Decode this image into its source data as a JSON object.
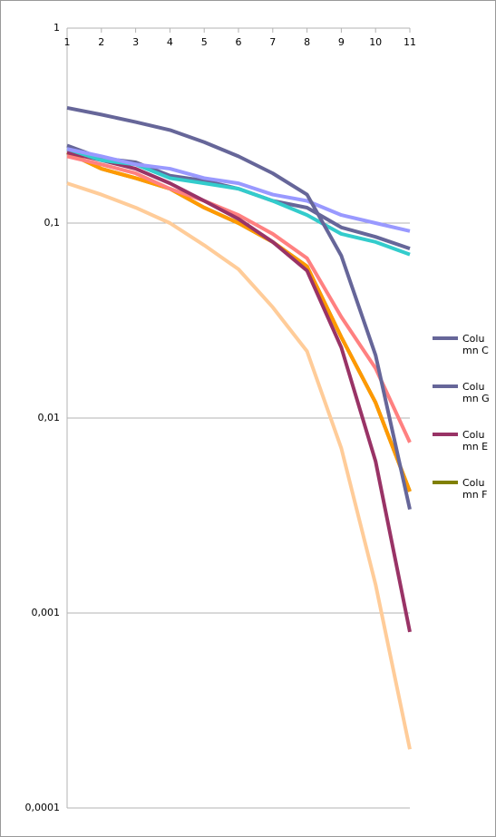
{
  "chart_data": {
    "type": "line",
    "log_scale": true,
    "grid": true,
    "legend": "right",
    "xlim": [
      1,
      11
    ],
    "xticks": [
      1,
      2,
      3,
      4,
      5,
      6,
      7,
      8,
      9,
      10,
      11
    ],
    "ylim": [
      0.0001,
      1
    ],
    "yticks": [
      {
        "value": 0.0001,
        "label": "0,0001"
      },
      {
        "value": 0.001,
        "label": "0,001"
      },
      {
        "value": 0.01,
        "label": "0,01"
      },
      {
        "value": 0.1,
        "label": "0,1"
      },
      1
    ],
    "x": [
      1,
      2,
      3,
      4,
      5,
      6,
      7,
      8,
      9,
      10,
      11
    ],
    "series": [
      {
        "name": "Column F",
        "color": "#808000",
        "values": [
          0.23,
          0.19,
          0.17,
          0.15,
          0.12,
          0.1,
          0.08,
          0.06,
          0.026,
          0.012,
          0.0042
        ]
      },
      {
        "color": "#ffcc99",
        "values": [
          0.16,
          0.14,
          0.12,
          0.1,
          0.077,
          0.058,
          0.037,
          0.022,
          0.007,
          0.0014,
          0.0002
        ]
      },
      {
        "color": "#ff9900",
        "values": [
          0.23,
          0.19,
          0.17,
          0.15,
          0.12,
          0.1,
          0.08,
          0.06,
          0.026,
          0.012,
          0.0042
        ]
      },
      {
        "color": "#ff8080",
        "values": [
          0.22,
          0.2,
          0.18,
          0.15,
          0.13,
          0.11,
          0.088,
          0.066,
          0.033,
          0.018,
          0.0075
        ]
      },
      {
        "name": "Column E",
        "color": "#993366",
        "values": [
          0.23,
          0.21,
          0.19,
          0.16,
          0.13,
          0.105,
          0.08,
          0.057,
          0.023,
          0.006,
          0.0008
        ]
      },
      {
        "name": "Column G",
        "color": "#666699",
        "values": [
          0.25,
          0.215,
          0.205,
          0.175,
          0.165,
          0.15,
          0.13,
          0.12,
          0.095,
          0.085,
          0.074
        ]
      },
      {
        "color": "#33cccc",
        "values": [
          0.24,
          0.21,
          0.2,
          0.17,
          0.16,
          0.15,
          0.13,
          0.11,
          0.088,
          0.08,
          0.069
        ]
      },
      {
        "color": "#9999ff",
        "values": [
          0.24,
          0.22,
          0.2,
          0.19,
          0.17,
          0.16,
          0.14,
          0.13,
          0.11,
          0.1,
          0.091
        ]
      },
      {
        "name": "Column C",
        "color": "#666699",
        "values": [
          0.39,
          0.36,
          0.33,
          0.3,
          0.26,
          0.22,
          0.18,
          0.14,
          0.068,
          0.021,
          0.0034
        ]
      }
    ]
  }
}
